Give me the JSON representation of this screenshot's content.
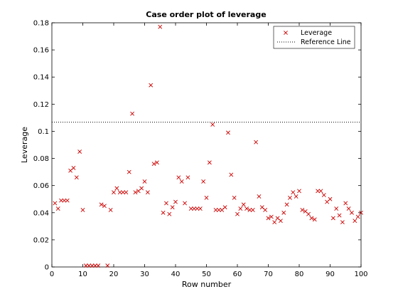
{
  "chart_data": {
    "type": "scatter",
    "title": "Case order plot of leverage",
    "xlabel": "Row number",
    "ylabel": "Leverage",
    "xlim": [
      0,
      100
    ],
    "ylim": [
      0,
      0.18
    ],
    "xticks": [
      "0",
      "10",
      "20",
      "30",
      "40",
      "50",
      "60",
      "70",
      "80",
      "90",
      "100"
    ],
    "yticks": [
      "0",
      "0.02",
      "0.04",
      "0.06",
      "0.08",
      "0.1",
      "0.12",
      "0.14",
      "0.16",
      "0.18"
    ],
    "grid": false,
    "legend_position": "top-right",
    "reference_line": {
      "name": "Reference Line",
      "y": 0.1067,
      "style": "dotted",
      "color": "#000000"
    },
    "series": [
      {
        "name": "Leverage",
        "marker": "x",
        "color": "#cc0000",
        "x": [
          1,
          2,
          3,
          4,
          5,
          6,
          7,
          8,
          9,
          10,
          11,
          12,
          13,
          14,
          15,
          16,
          17,
          18,
          19,
          20,
          21,
          22,
          23,
          24,
          25,
          26,
          27,
          28,
          29,
          30,
          31,
          32,
          33,
          34,
          35,
          36,
          37,
          38,
          39,
          40,
          41,
          42,
          43,
          44,
          45,
          46,
          47,
          48,
          49,
          50,
          51,
          52,
          53,
          54,
          55,
          56,
          57,
          58,
          59,
          60,
          61,
          62,
          63,
          64,
          65,
          66,
          67,
          68,
          69,
          70,
          71,
          72,
          73,
          74,
          75,
          76,
          77,
          78,
          79,
          80,
          81,
          82,
          83,
          84,
          85,
          86,
          87,
          88,
          89,
          90,
          91,
          92,
          93,
          94,
          95,
          96,
          97,
          98,
          99,
          100
        ],
        "y": [
          0.047,
          0.043,
          0.049,
          0.049,
          0.049,
          0.071,
          0.073,
          0.066,
          0.085,
          0.042,
          0.001,
          0.001,
          0.001,
          0.001,
          0.001,
          0.046,
          0.045,
          0.001,
          0.042,
          0.055,
          0.058,
          0.055,
          0.055,
          0.055,
          0.07,
          0.113,
          0.055,
          0.056,
          0.058,
          0.063,
          0.055,
          0.134,
          0.076,
          0.077,
          0.177,
          0.04,
          0.047,
          0.039,
          0.044,
          0.048,
          0.066,
          0.063,
          0.047,
          0.066,
          0.043,
          0.043,
          0.043,
          0.043,
          0.063,
          0.051,
          0.077,
          0.105,
          0.042,
          0.042,
          0.042,
          0.044,
          0.099,
          0.068,
          0.051,
          0.039,
          0.043,
          0.046,
          0.043,
          0.042,
          0.042,
          0.092,
          0.052,
          0.044,
          0.042,
          0.036,
          0.037,
          0.033,
          0.036,
          0.034,
          0.04,
          0.046,
          0.051,
          0.055,
          0.052,
          0.056,
          0.042,
          0.041,
          0.039,
          0.036,
          0.035,
          0.056,
          0.056,
          0.053,
          0.048,
          0.05,
          0.036,
          0.043,
          0.038,
          0.033,
          0.047,
          0.043,
          0.04,
          0.034,
          0.037,
          0.04
        ]
      }
    ]
  }
}
